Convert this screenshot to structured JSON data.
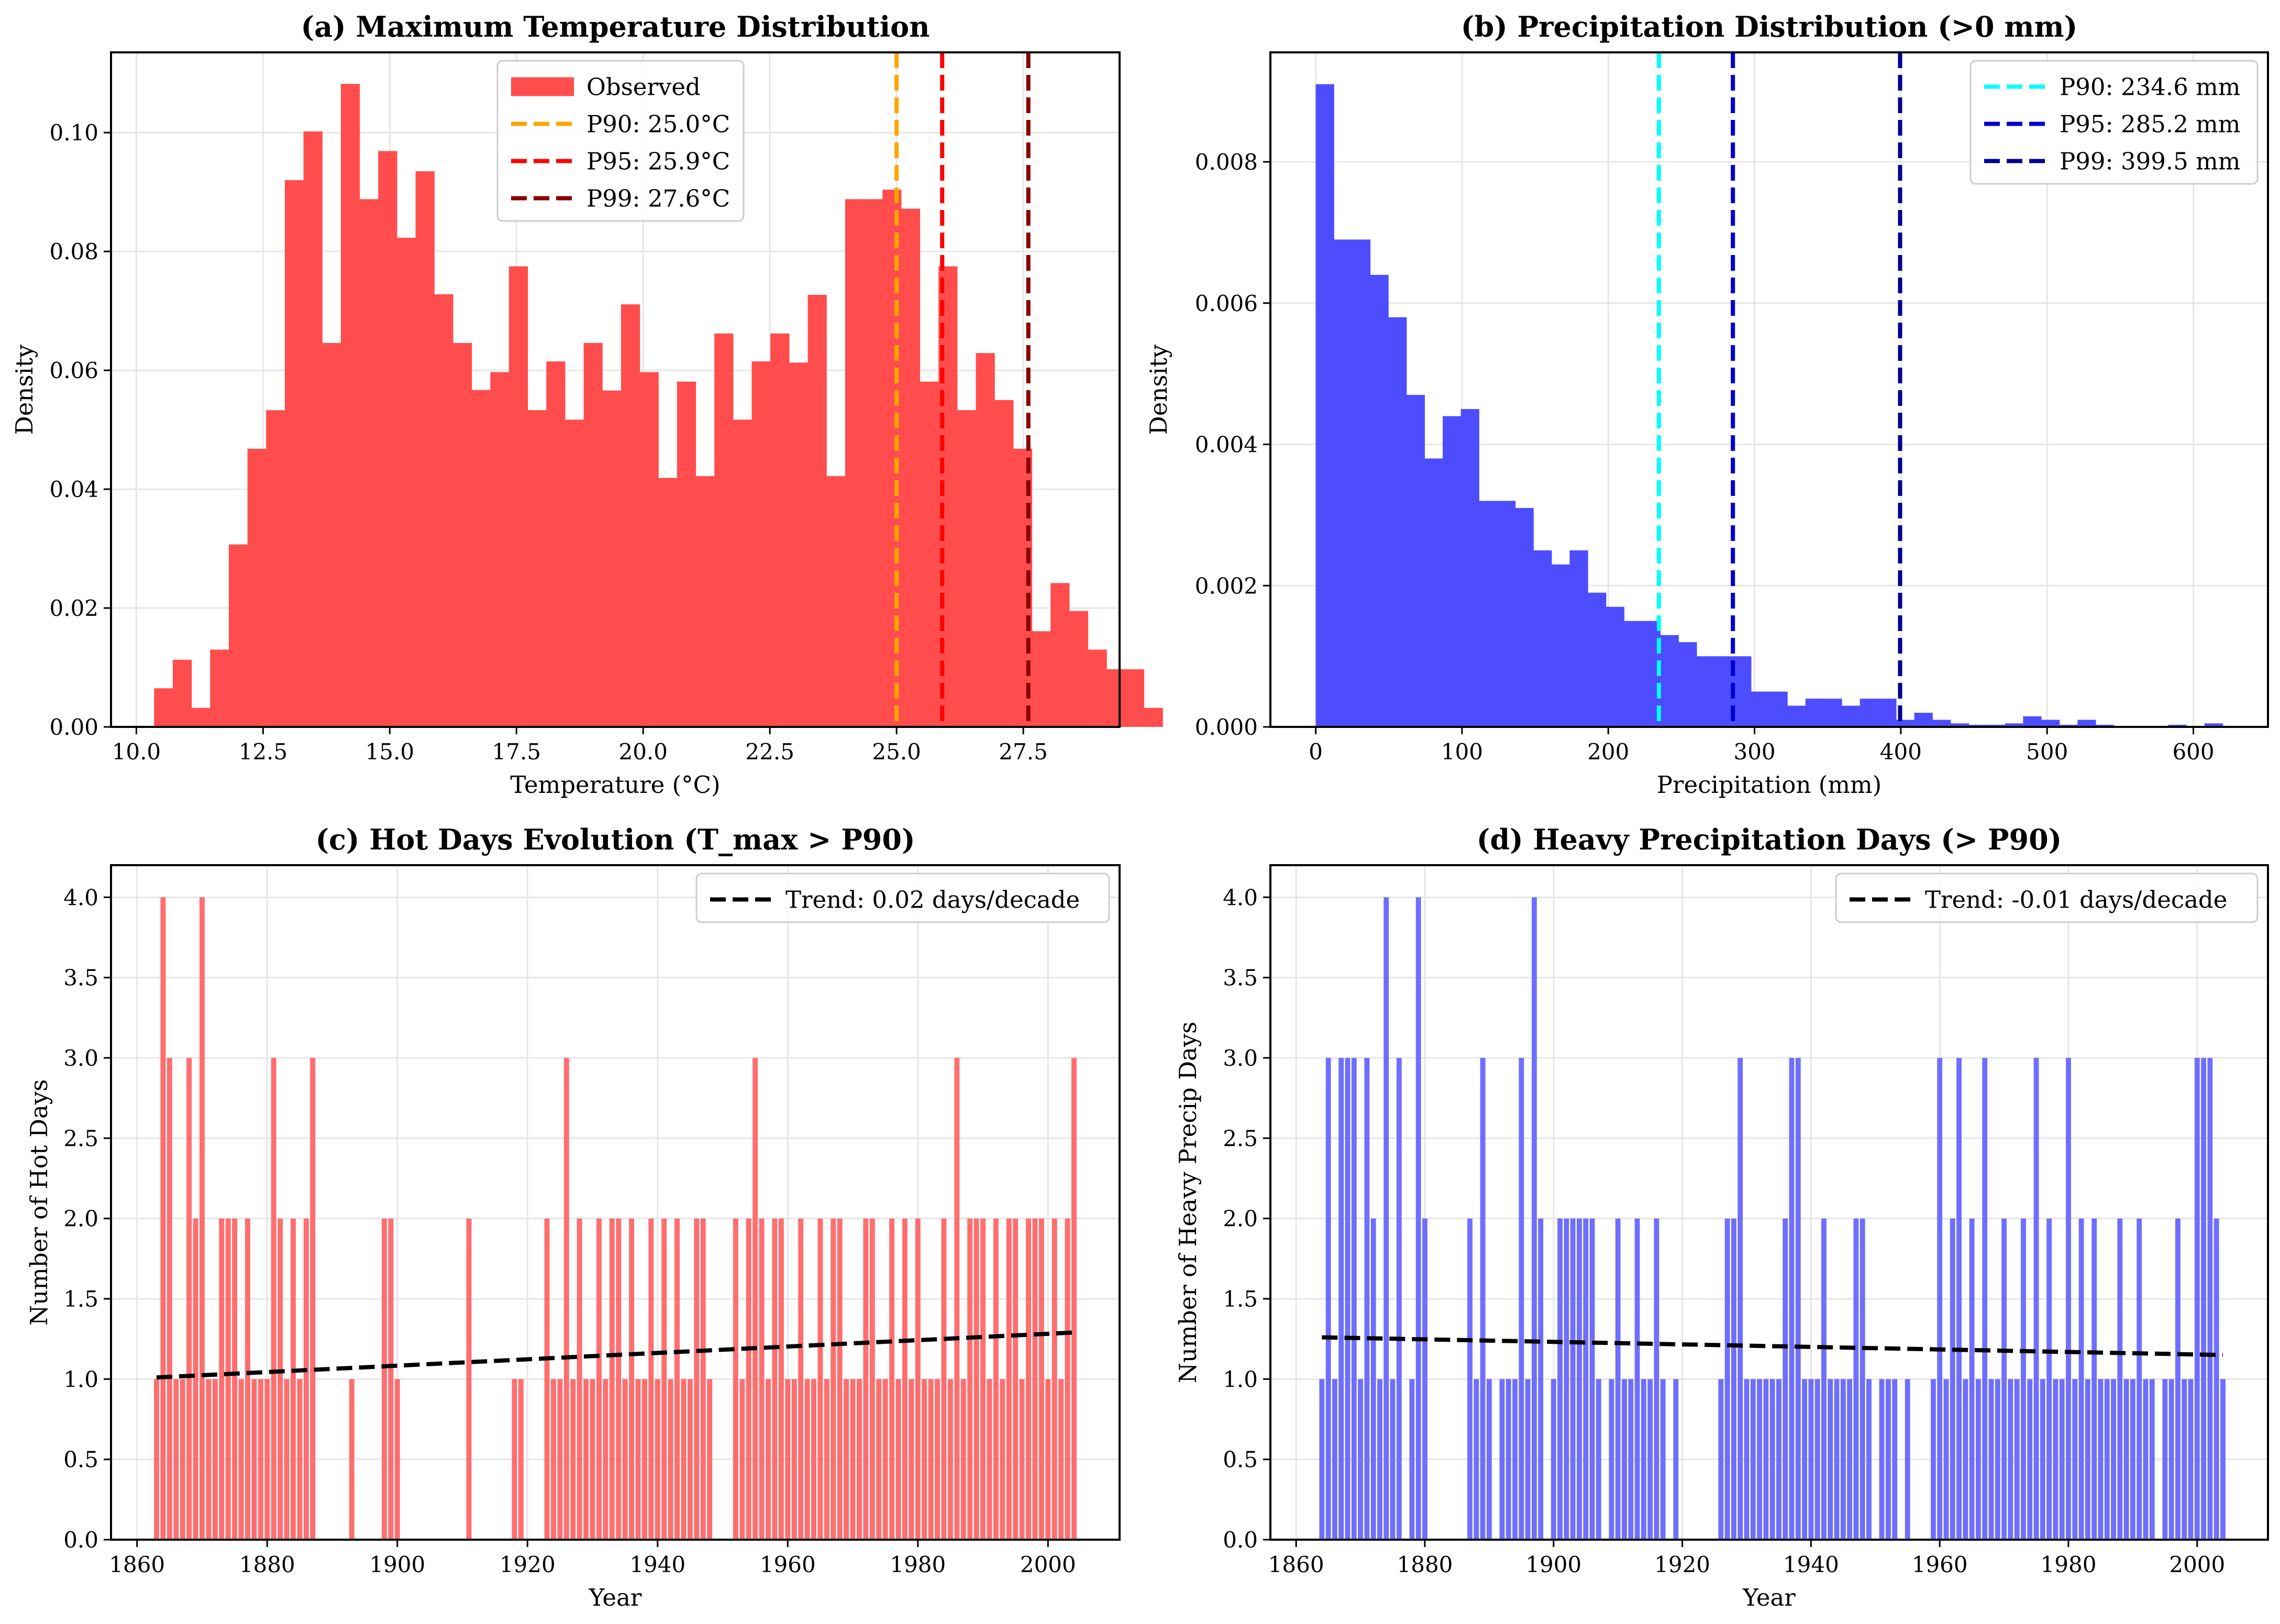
{
  "chart_data": [
    {
      "type": "bar",
      "title": "(a) Maximum Temperature Distribution",
      "xlabel": "Temperature (°C)",
      "ylabel": "Density",
      "xlim": [
        9.5,
        29.4
      ],
      "ylim": [
        0,
        0.1135
      ],
      "xticks": [
        10.0,
        12.5,
        15.0,
        17.5,
        20.0,
        22.5,
        25.0,
        27.5
      ],
      "xtick_labels": [
        "10.0",
        "12.5",
        "15.0",
        "17.5",
        "20.0",
        "22.5",
        "25.0",
        "27.5"
      ],
      "yticks": [
        0,
        0.02,
        0.04,
        0.06,
        0.08,
        0.1
      ],
      "ytick_labels": [
        "0.00",
        "0.02",
        "0.04",
        "0.06",
        "0.08",
        "0.10"
      ],
      "grid": true,
      "legend_position": "top-center",
      "bin_start": 10.35,
      "bin_width": 0.3685,
      "series": [
        {
          "name": "Observed",
          "color": "#ff4d4d",
          "values": [
            0.0065,
            0.0113,
            0.0032,
            0.013,
            0.0307,
            0.0468,
            0.0533,
            0.092,
            0.1002,
            0.0646,
            0.1082,
            0.0888,
            0.0969,
            0.0823,
            0.0935,
            0.0728,
            0.0646,
            0.0567,
            0.0597,
            0.0775,
            0.0533,
            0.0615,
            0.0517,
            0.0646,
            0.0566,
            0.0711,
            0.0597,
            0.0419,
            0.0581,
            0.0422,
            0.0662,
            0.0517,
            0.0615,
            0.0662,
            0.0613,
            0.0727,
            0.0422,
            0.0888,
            0.0888,
            0.0904,
            0.0872,
            0.0581,
            0.0775,
            0.0533,
            0.0629,
            0.055,
            0.0468,
            0.0161,
            0.0242,
            0.0195,
            0.013,
            0.0097,
            0.0097,
            0.0032
          ]
        }
      ],
      "reference_lines": [
        {
          "name": "P90: 25.0°C",
          "x": 25.0,
          "color": "#ffa500"
        },
        {
          "name": "P95: 25.9°C",
          "x": 25.9,
          "color": "#ff0000"
        },
        {
          "name": "P99: 27.6°C",
          "x": 27.6,
          "color": "#8b0000"
        }
      ]
    },
    {
      "type": "bar",
      "title": "(b) Precipitation Distribution (>0 mm)",
      "xlabel": "Precipitation (mm)",
      "ylabel": "Density",
      "xlim": [
        -31,
        651
      ],
      "ylim": [
        0,
        0.00955
      ],
      "xticks": [
        0,
        100,
        200,
        300,
        400,
        500,
        600
      ],
      "xtick_labels": [
        "0",
        "100",
        "200",
        "300",
        "400",
        "500",
        "600"
      ],
      "yticks": [
        0,
        0.002,
        0.004,
        0.006,
        0.008
      ],
      "ytick_labels": [
        "0.000",
        "0.002",
        "0.004",
        "0.006",
        "0.008"
      ],
      "grid": true,
      "legend_position": "top-right",
      "bin_start": 0,
      "bin_width": 12.4,
      "series": [
        {
          "name": "",
          "color": "#4d4dff",
          "values": [
            0.0091,
            0.0069,
            0.0069,
            0.0064,
            0.0058,
            0.0047,
            0.0038,
            0.0044,
            0.0045,
            0.0032,
            0.0032,
            0.0031,
            0.0025,
            0.0023,
            0.0025,
            0.0019,
            0.0017,
            0.0015,
            0.0015,
            0.0013,
            0.0012,
            0.001,
            0.001,
            0.001,
            0.0005,
            0.0005,
            0.0003,
            0.0004,
            0.0004,
            0.0003,
            0.0004,
            0.0004,
            0.0001,
            0.0002,
            0.0001,
            5e-05,
            3e-05,
            3e-05,
            5e-05,
            0.00015,
            0.0001,
            3e-05,
            0.0001,
            3e-05,
            0,
            0,
            0,
            3e-05,
            0,
            5e-05
          ]
        }
      ],
      "reference_lines": [
        {
          "name": "P90: 234.6 mm",
          "x": 234.6,
          "color": "#00ffff"
        },
        {
          "name": "P95: 285.2 mm",
          "x": 285.2,
          "color": "#0000cd"
        },
        {
          "name": "P99: 399.5 mm",
          "x": 399.5,
          "color": "#00008b"
        }
      ]
    },
    {
      "type": "bar",
      "title": "(c) Hot Days Evolution (T_max > P90)",
      "xlabel": "Year",
      "ylabel": "Number of Hot Days",
      "xlim": [
        1856,
        2011
      ],
      "ylim": [
        0,
        4.2
      ],
      "xticks": [
        1860,
        1880,
        1900,
        1920,
        1940,
        1960,
        1980,
        2000
      ],
      "xtick_labels": [
        "1860",
        "1880",
        "1900",
        "1920",
        "1940",
        "1960",
        "1980",
        "2000"
      ],
      "yticks": [
        0,
        0.5,
        1,
        1.5,
        2,
        2.5,
        3,
        3.5,
        4
      ],
      "ytick_labels": [
        "0.0",
        "0.5",
        "1.0",
        "1.5",
        "2.0",
        "2.5",
        "3.0",
        "3.5",
        "4.0"
      ],
      "grid": true,
      "legend_position": "top-right",
      "x_start": 1863,
      "series": [
        {
          "name": "",
          "color": "#ff6666",
          "values": [
            1,
            4,
            3,
            1,
            1,
            3,
            2,
            4,
            1,
            1,
            2,
            2,
            2,
            1,
            2,
            1,
            1,
            1,
            3,
            2,
            1,
            2,
            1,
            2,
            3,
            0,
            0,
            0,
            0,
            0,
            1,
            0,
            0,
            0,
            0,
            2,
            2,
            1,
            0,
            0,
            0,
            0,
            0,
            0,
            0,
            0,
            0,
            0,
            2,
            0,
            0,
            0,
            0,
            0,
            0,
            1,
            1,
            0,
            0,
            0,
            2,
            1,
            1,
            3,
            1,
            2,
            1,
            1,
            2,
            1,
            2,
            2,
            1,
            2,
            1,
            1,
            2,
            1,
            2,
            1,
            2,
            1,
            1,
            2,
            2,
            1,
            0,
            0,
            0,
            2,
            1,
            2,
            3,
            2,
            1,
            2,
            2,
            1,
            1,
            2,
            1,
            1,
            2,
            1,
            2,
            2,
            1,
            1,
            1,
            2,
            2,
            1,
            1,
            2,
            1,
            2,
            1,
            2,
            1,
            1,
            1,
            2,
            1,
            3,
            1,
            2,
            2,
            2,
            1,
            2,
            1,
            2,
            2,
            1,
            2,
            2,
            2,
            1,
            2,
            1,
            2,
            3
          ]
        }
      ],
      "trend": {
        "name": "Trend: 0.02 days/decade",
        "x": [
          1863,
          2004
        ],
        "y": [
          1.01,
          1.29
        ],
        "color": "#000000"
      }
    },
    {
      "type": "bar",
      "title": "(d) Heavy Precipitation Days (> P90)",
      "xlabel": "Year",
      "ylabel": "Number of Heavy Precip Days",
      "xlim": [
        1856,
        2011
      ],
      "ylim": [
        0,
        4.2
      ],
      "xticks": [
        1860,
        1880,
        1900,
        1920,
        1940,
        1960,
        1980,
        2000
      ],
      "xtick_labels": [
        "1860",
        "1880",
        "1900",
        "1920",
        "1940",
        "1960",
        "1980",
        "2000"
      ],
      "yticks": [
        0,
        0.5,
        1,
        1.5,
        2,
        2.5,
        3,
        3.5,
        4
      ],
      "ytick_labels": [
        "0.0",
        "0.5",
        "1.0",
        "1.5",
        "2.0",
        "2.5",
        "3.0",
        "3.5",
        "4.0"
      ],
      "grid": true,
      "legend_position": "top-right",
      "x_start": 1864,
      "series": [
        {
          "name": "",
          "color": "#6666ff",
          "values": [
            1,
            3,
            1,
            3,
            3,
            3,
            1,
            3,
            2,
            1,
            4,
            1,
            3,
            0,
            1,
            4,
            2,
            0,
            0,
            0,
            0,
            0,
            0,
            2,
            1,
            3,
            1,
            0,
            1,
            1,
            1,
            3,
            1,
            4,
            2,
            0,
            1,
            2,
            2,
            2,
            2,
            2,
            2,
            1,
            0,
            1,
            2,
            1,
            1,
            2,
            1,
            1,
            2,
            1,
            0,
            1,
            0,
            0,
            0,
            0,
            0,
            0,
            1,
            2,
            2,
            3,
            1,
            1,
            1,
            1,
            1,
            1,
            2,
            3,
            3,
            1,
            1,
            1,
            2,
            1,
            1,
            1,
            1,
            2,
            2,
            1,
            0,
            1,
            1,
            1,
            0,
            1,
            0,
            0,
            0,
            1,
            3,
            1,
            2,
            3,
            1,
            2,
            1,
            3,
            1,
            1,
            2,
            1,
            1,
            2,
            1,
            3,
            1,
            2,
            1,
            1,
            3,
            1,
            2,
            1,
            2,
            1,
            1,
            1,
            2,
            1,
            1,
            2,
            1,
            1,
            0,
            1,
            1,
            2,
            1,
            1,
            3,
            3,
            3,
            2,
            1
          ]
        }
      ],
      "trend": {
        "name": "Trend: -0.01 days/decade",
        "x": [
          1864,
          2004
        ],
        "y": [
          1.26,
          1.15
        ],
        "color": "#000000"
      }
    }
  ]
}
